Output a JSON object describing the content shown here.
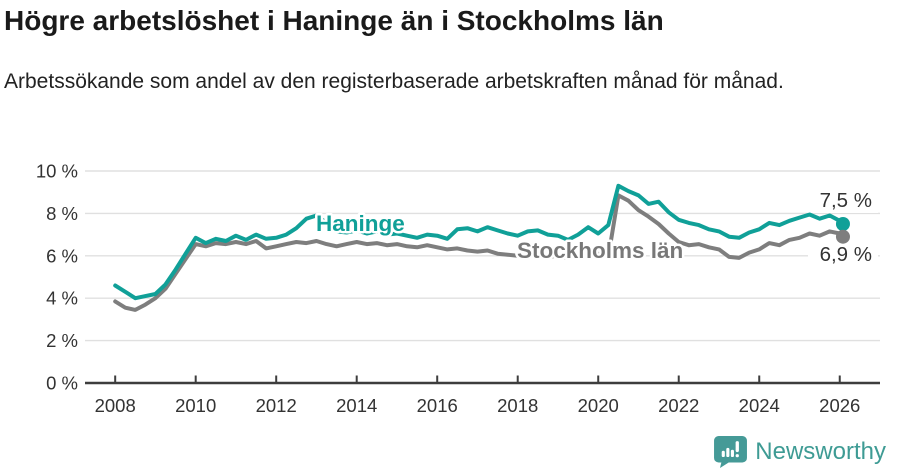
{
  "header": {
    "title": "Högre arbetslöshet i Haninge än i Stockholms län",
    "subtitle": "Arbetssökande som andel av den registerbaserade arbetskraften månad för månad."
  },
  "chart_data": {
    "type": "line",
    "x_unit": "decimal-year, monthly data shown 2008–2026 (values read at quarterly resolution)",
    "x": [
      2008.0,
      2008.25,
      2008.5,
      2008.75,
      2009.0,
      2009.25,
      2009.5,
      2009.75,
      2010.0,
      2010.25,
      2010.5,
      2010.75,
      2011.0,
      2011.25,
      2011.5,
      2011.75,
      2012.0,
      2012.25,
      2012.5,
      2012.75,
      2013.0,
      2013.25,
      2013.5,
      2013.75,
      2014.0,
      2014.25,
      2014.5,
      2014.75,
      2015.0,
      2015.25,
      2015.5,
      2015.75,
      2016.0,
      2016.25,
      2016.5,
      2016.75,
      2017.0,
      2017.25,
      2017.5,
      2017.75,
      2018.0,
      2018.25,
      2018.5,
      2018.75,
      2019.0,
      2019.25,
      2019.5,
      2019.75,
      2020.0,
      2020.25,
      2020.5,
      2020.75,
      2021.0,
      2021.25,
      2021.5,
      2021.75,
      2022.0,
      2022.25,
      2022.5,
      2022.75,
      2023.0,
      2023.25,
      2023.5,
      2023.75,
      2024.0,
      2024.25,
      2024.5,
      2024.75,
      2025.0,
      2025.25,
      2025.5,
      2025.75,
      2026.0,
      2026.08
    ],
    "series": [
      {
        "name": "Haninge",
        "color": "#10a098",
        "end_label": "7,5 %",
        "end_value": 7.5,
        "values": [
          4.6,
          4.3,
          4.0,
          4.1,
          4.2,
          4.65,
          5.35,
          6.1,
          6.85,
          6.6,
          6.8,
          6.7,
          6.95,
          6.75,
          7.0,
          6.8,
          6.85,
          7.0,
          7.3,
          7.75,
          7.9,
          7.55,
          7.15,
          7.1,
          7.2,
          7.05,
          7.15,
          7.0,
          7.05,
          6.95,
          6.85,
          7.0,
          6.95,
          6.8,
          7.25,
          7.3,
          7.15,
          7.35,
          7.2,
          7.05,
          6.95,
          7.15,
          7.2,
          7.0,
          6.95,
          6.75,
          7.0,
          7.35,
          7.05,
          7.45,
          9.3,
          9.05,
          8.85,
          8.45,
          8.55,
          8.05,
          7.7,
          7.55,
          7.45,
          7.25,
          7.15,
          6.9,
          6.85,
          7.1,
          7.25,
          7.55,
          7.45,
          7.65,
          7.8,
          7.95,
          7.75,
          7.9,
          7.65,
          7.5
        ]
      },
      {
        "name": "Stockholms län",
        "color": "#7e7e7e",
        "end_label": "6,9 %",
        "end_value": 6.9,
        "values": [
          3.85,
          3.55,
          3.45,
          3.7,
          4.0,
          4.45,
          5.15,
          5.85,
          6.55,
          6.45,
          6.6,
          6.55,
          6.65,
          6.55,
          6.7,
          6.35,
          6.45,
          6.55,
          6.65,
          6.6,
          6.7,
          6.55,
          6.45,
          6.55,
          6.65,
          6.55,
          6.6,
          6.5,
          6.55,
          6.45,
          6.4,
          6.5,
          6.4,
          6.3,
          6.35,
          6.25,
          6.2,
          6.25,
          6.1,
          6.05,
          6.0,
          6.05,
          6.0,
          5.95,
          6.0,
          5.9,
          6.0,
          6.05,
          6.1,
          5.95,
          8.85,
          8.6,
          8.15,
          7.85,
          7.5,
          7.05,
          6.65,
          6.5,
          6.55,
          6.4,
          6.3,
          5.95,
          5.9,
          6.15,
          6.3,
          6.6,
          6.5,
          6.75,
          6.85,
          7.05,
          6.95,
          7.15,
          7.05,
          6.9
        ]
      }
    ],
    "x_ticks": [
      2008,
      2010,
      2012,
      2014,
      2016,
      2018,
      2020,
      2022,
      2024,
      2026
    ],
    "y_ticks": [
      {
        "v": 0,
        "label": "0 %"
      },
      {
        "v": 2,
        "label": "2 %"
      },
      {
        "v": 4,
        "label": "4 %"
      },
      {
        "v": 6,
        "label": "6 %"
      },
      {
        "v": 8,
        "label": "8 %"
      },
      {
        "v": 10,
        "label": "10 %"
      }
    ],
    "ylim": [
      0,
      10
    ],
    "grid": "horizontal only",
    "legend": "inline series labels on lines"
  },
  "colors": {
    "haninge_line": "#10a098",
    "stockholm_line": "#7e7e7e",
    "stockholm_label": "#787878",
    "grid": "#e0e0e0",
    "axis": "#3d3d3d",
    "axis_text": "#333333",
    "title_text": "#1a1a1a",
    "brand_teal": "#459a97"
  },
  "footer": {
    "brand": "Newsworthy"
  }
}
